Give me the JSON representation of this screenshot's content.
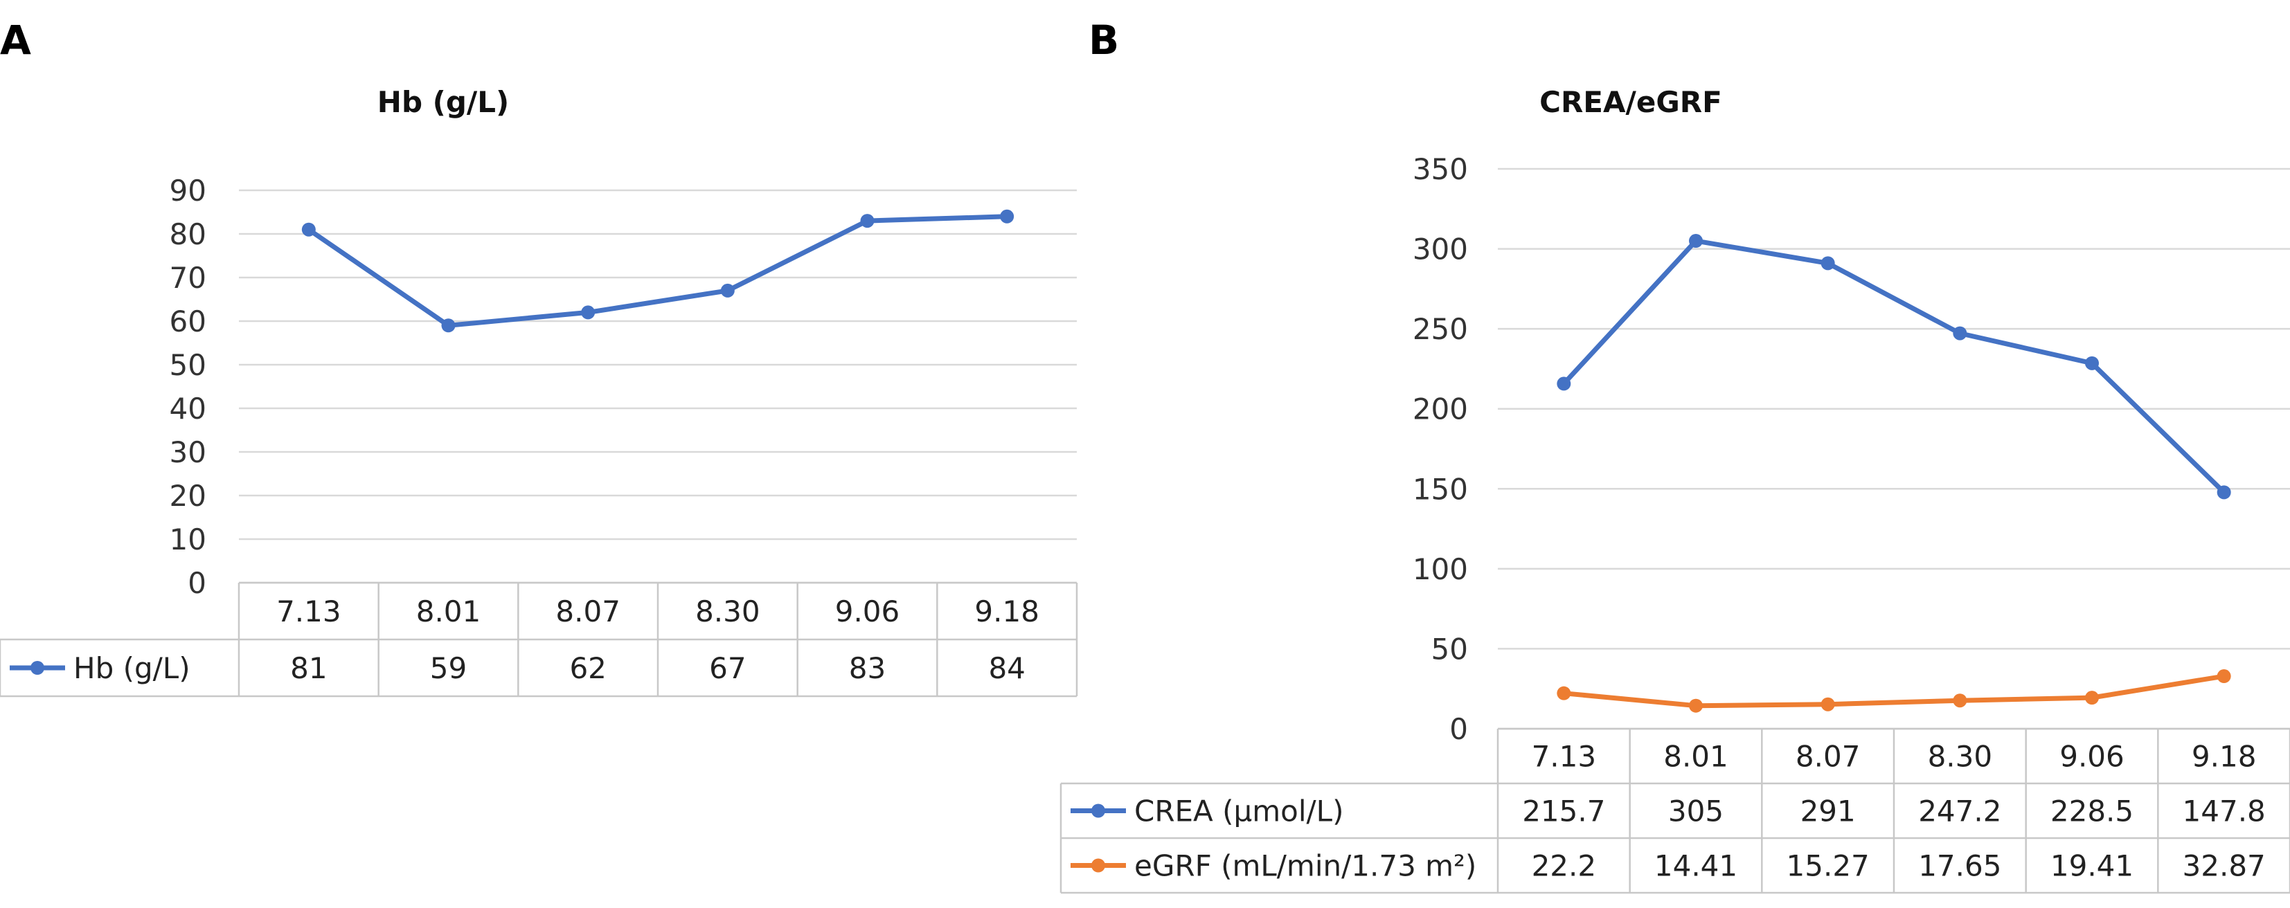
{
  "panels": {
    "a": {
      "label": "A"
    },
    "b": {
      "label": "B"
    }
  },
  "chart_data": [
    {
      "type": "line",
      "title": "Hb (g/L)",
      "categories": [
        "7.13",
        "8.01",
        "8.07",
        "8.30",
        "9.06",
        "9.18"
      ],
      "ylim": [
        0,
        90
      ],
      "yticks": [
        0,
        10,
        20,
        30,
        40,
        50,
        60,
        70,
        80,
        90
      ],
      "grid": true,
      "legend": "data-table",
      "series": [
        {
          "name": "Hb (g/L)",
          "color": "#4472C4",
          "values": [
            81,
            59,
            62,
            67,
            83,
            84
          ],
          "labels": [
            "81",
            "59",
            "62",
            "67",
            "83",
            "84"
          ]
        }
      ]
    },
    {
      "type": "line",
      "title": "CREA/eGRF",
      "categories": [
        "7.13",
        "8.01",
        "8.07",
        "8.30",
        "9.06",
        "9.18"
      ],
      "ylim": [
        0,
        350
      ],
      "yticks": [
        0,
        50,
        100,
        150,
        200,
        250,
        300,
        350
      ],
      "grid": true,
      "legend": "data-table",
      "series": [
        {
          "name": "CREA (μmol/L)",
          "color": "#4472C4",
          "values": [
            215.7,
            305,
            291,
            247.2,
            228.5,
            147.8
          ],
          "labels": [
            "215.7",
            "305",
            "291",
            "247.2",
            "228.5",
            "147.8"
          ]
        },
        {
          "name": "eGRF (mL/min/1.73 m²)",
          "color": "#ED7D31",
          "values": [
            22.2,
            14.41,
            15.27,
            17.65,
            19.41,
            32.87
          ],
          "labels": [
            "22.2",
            "14.41",
            "15.27",
            "17.65",
            "19.41",
            "32.87"
          ]
        }
      ]
    }
  ]
}
